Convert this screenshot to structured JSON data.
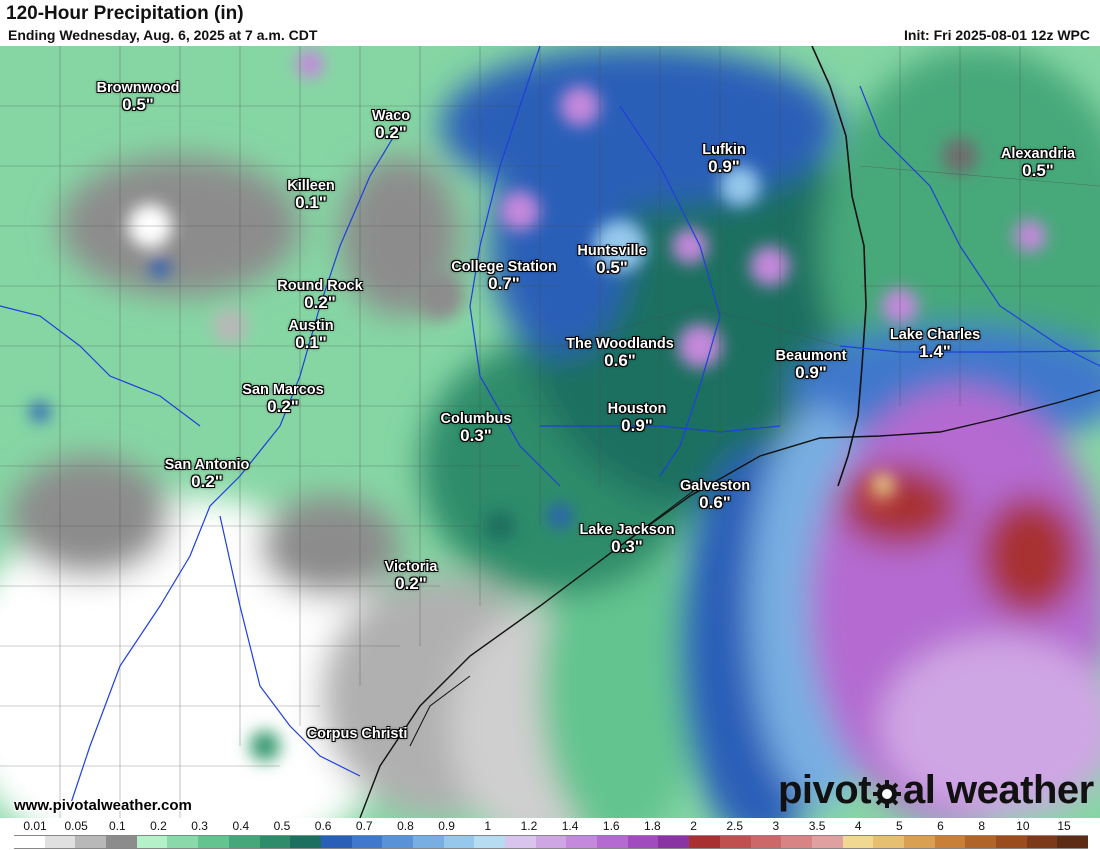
{
  "header": {
    "title": "120-Hour Precipitation (in)",
    "subtitle": "Ending Wednesday, Aug. 6, 2025 at 7 a.m. CDT",
    "init": "Init: Fri 2025-08-01 12z WPC"
  },
  "cities": [
    {
      "name": "Brownwood",
      "value": "0.5\""
    },
    {
      "name": "Waco",
      "value": "0.2\""
    },
    {
      "name": "Killeen",
      "value": "0.1\""
    },
    {
      "name": "Lufkin",
      "value": "0.9\""
    },
    {
      "name": "Alexandria",
      "value": "0.5\""
    },
    {
      "name": "Huntsville",
      "value": "0.5\""
    },
    {
      "name": "College Station",
      "value": "0.7\""
    },
    {
      "name": "Round Rock",
      "value": "0.2\""
    },
    {
      "name": "Austin",
      "value": "0.1\""
    },
    {
      "name": "The Woodlands",
      "value": "0.6\""
    },
    {
      "name": "Beaumont",
      "value": "0.9\""
    },
    {
      "name": "Lake Charles",
      "value": "1.4\""
    },
    {
      "name": "San Marcos",
      "value": "0.2\""
    },
    {
      "name": "Columbus",
      "value": "0.3\""
    },
    {
      "name": "Houston",
      "value": "0.9\""
    },
    {
      "name": "San Antonio",
      "value": "0.2\""
    },
    {
      "name": "Galveston",
      "value": "0.6\""
    },
    {
      "name": "Lake Jackson",
      "value": "0.3\""
    },
    {
      "name": "Victoria",
      "value": "0.2\""
    },
    {
      "name": "Corpus Christi",
      "value": ""
    }
  ],
  "footer": {
    "website": "www.pivotalweather.com",
    "brand_left": "pivot",
    "brand_right": "al weather"
  },
  "legend": {
    "ticks": [
      "0.01",
      "0.05",
      "0.1",
      "0.2",
      "0.3",
      "0.4",
      "0.5",
      "0.6",
      "0.7",
      "0.8",
      "0.9",
      "1",
      "1.2",
      "1.4",
      "1.6",
      "1.8",
      "2",
      "2.5",
      "3",
      "3.5",
      "4",
      "5",
      "6",
      "8",
      "10",
      "15"
    ],
    "colors": [
      "#ffffff",
      "#e0e0e0",
      "#b8b8b8",
      "#8c8c8c",
      "#b4f0c8",
      "#8ad9a8",
      "#64c490",
      "#46a87a",
      "#2f8c6a",
      "#1d7060",
      "#2a5fb8",
      "#3f78cc",
      "#5a92d8",
      "#78aee2",
      "#96c8ec",
      "#b6dcf2",
      "#d8c4ec",
      "#cfa6e4",
      "#c488dc",
      "#b46ad0",
      "#a04cbe",
      "#8a34a4",
      "#a83030",
      "#c05050",
      "#cc6868",
      "#d88484",
      "#e0a0a0",
      "#f0d890",
      "#e6c070",
      "#d8a050",
      "#c88038",
      "#b06428",
      "#9a4c1e",
      "#7c3a18",
      "#5e2c14"
    ]
  }
}
